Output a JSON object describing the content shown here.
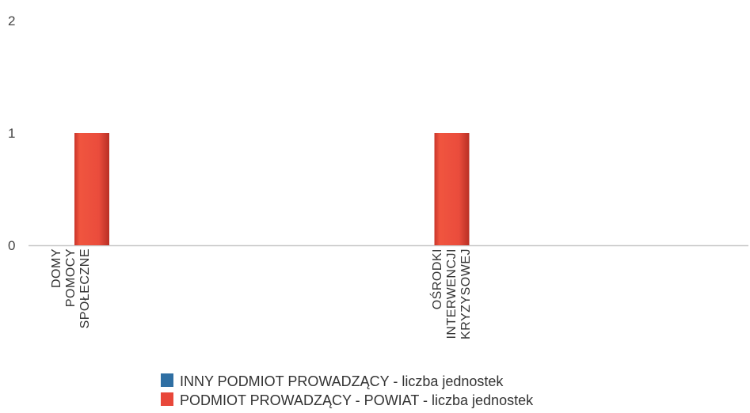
{
  "chart_data": {
    "type": "bar",
    "categories": [
      [
        "DOMY",
        "POMOCY",
        "SPOŁECZNE"
      ],
      [
        "OŚRODKI",
        "INTERWENCJI",
        "KRYZYSOWEJ"
      ]
    ],
    "series": [
      {
        "name": "INNY PODMIOT PROWADZĄCY - liczba jednostek",
        "values": [
          0,
          0
        ],
        "color": "#2f6fa3"
      },
      {
        "name": "PODMIOT PROWADZĄCY - POWIAT - liczba jednostek",
        "values": [
          1,
          1
        ],
        "color": "#e8473a"
      }
    ],
    "yticks": [
      "0",
      "1",
      "2"
    ],
    "ylim": [
      0,
      2
    ],
    "grid": false,
    "legend_position": "bottom"
  }
}
